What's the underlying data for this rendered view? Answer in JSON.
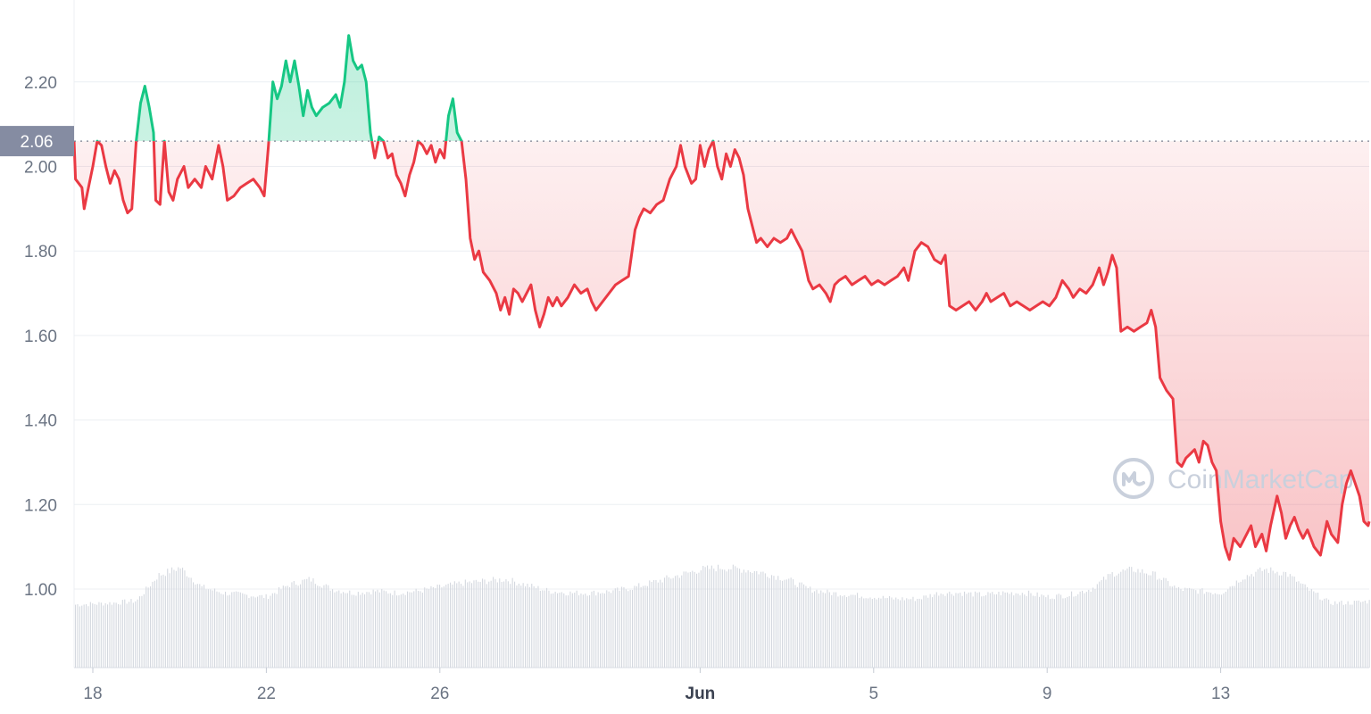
{
  "watermark": {
    "text": "CoinMarketCap",
    "icon": "coinmarketcap-logo-icon"
  },
  "colors": {
    "up": "#16c784",
    "down": "#ea3943",
    "grid": "#eceff3",
    "axis_text": "#6b7483",
    "volume": "#d4d8df",
    "ref_badge": "#858ca2"
  },
  "chart_data": {
    "type": "line",
    "title": "",
    "xlabel": "",
    "ylabel": "",
    "ylim": [
      0.82,
      2.35
    ],
    "y_ticks": [
      "1.00",
      "1.20",
      "1.40",
      "1.60",
      "1.80",
      "2.00",
      "2.20"
    ],
    "x_ticks": [
      {
        "label": "18",
        "day": 0,
        "bold": false
      },
      {
        "label": "22",
        "day": 4,
        "bold": false
      },
      {
        "label": "26",
        "day": 8,
        "bold": false
      },
      {
        "label": "Jun",
        "day": 14,
        "bold": true
      },
      {
        "label": "5",
        "day": 18,
        "bold": false
      },
      {
        "label": "9",
        "day": 22,
        "bold": false
      },
      {
        "label": "13",
        "day": 26,
        "bold": false
      }
    ],
    "reference": {
      "value": 2.06,
      "label": "2.06"
    },
    "x_domain": [
      -0.45,
      29.5
    ],
    "series": [
      {
        "points": [
          [
            -0.45,
            2.06
          ],
          [
            -0.4,
            1.97
          ],
          [
            -0.25,
            1.95
          ],
          [
            -0.2,
            1.9
          ],
          [
            -0.1,
            1.95
          ],
          [
            0,
            2.0
          ],
          [
            0.1,
            2.06
          ],
          [
            0.2,
            2.05
          ],
          [
            0.3,
            2.0
          ],
          [
            0.4,
            1.96
          ],
          [
            0.5,
            1.99
          ],
          [
            0.6,
            1.97
          ],
          [
            0.7,
            1.92
          ],
          [
            0.8,
            1.89
          ],
          [
            0.9,
            1.9
          ],
          [
            1.0,
            2.06
          ],
          [
            1.1,
            2.15
          ],
          [
            1.2,
            2.19
          ],
          [
            1.3,
            2.14
          ],
          [
            1.4,
            2.08
          ],
          [
            1.45,
            1.92
          ],
          [
            1.55,
            1.91
          ],
          [
            1.65,
            2.06
          ],
          [
            1.75,
            1.94
          ],
          [
            1.85,
            1.92
          ],
          [
            1.95,
            1.97
          ],
          [
            2.1,
            2.0
          ],
          [
            2.2,
            1.95
          ],
          [
            2.35,
            1.97
          ],
          [
            2.5,
            1.95
          ],
          [
            2.6,
            2.0
          ],
          [
            2.75,
            1.97
          ],
          [
            2.9,
            2.05
          ],
          [
            3.0,
            2.0
          ],
          [
            3.1,
            1.92
          ],
          [
            3.25,
            1.93
          ],
          [
            3.4,
            1.95
          ],
          [
            3.55,
            1.96
          ],
          [
            3.7,
            1.97
          ],
          [
            3.85,
            1.95
          ],
          [
            3.95,
            1.93
          ],
          [
            4.05,
            2.05
          ],
          [
            4.15,
            2.2
          ],
          [
            4.25,
            2.16
          ],
          [
            4.35,
            2.19
          ],
          [
            4.45,
            2.25
          ],
          [
            4.55,
            2.2
          ],
          [
            4.65,
            2.25
          ],
          [
            4.75,
            2.19
          ],
          [
            4.85,
            2.12
          ],
          [
            4.95,
            2.18
          ],
          [
            5.05,
            2.14
          ],
          [
            5.15,
            2.12
          ],
          [
            5.3,
            2.14
          ],
          [
            5.45,
            2.15
          ],
          [
            5.6,
            2.17
          ],
          [
            5.7,
            2.14
          ],
          [
            5.8,
            2.2
          ],
          [
            5.9,
            2.31
          ],
          [
            6.0,
            2.25
          ],
          [
            6.1,
            2.23
          ],
          [
            6.2,
            2.24
          ],
          [
            6.3,
            2.2
          ],
          [
            6.4,
            2.08
          ],
          [
            6.5,
            2.02
          ],
          [
            6.6,
            2.07
          ],
          [
            6.7,
            2.06
          ],
          [
            6.8,
            2.02
          ],
          [
            6.9,
            2.03
          ],
          [
            7.0,
            1.98
          ],
          [
            7.1,
            1.96
          ],
          [
            7.2,
            1.93
          ],
          [
            7.3,
            1.98
          ],
          [
            7.4,
            2.01
          ],
          [
            7.5,
            2.06
          ],
          [
            7.6,
            2.05
          ],
          [
            7.7,
            2.03
          ],
          [
            7.8,
            2.05
          ],
          [
            7.9,
            2.01
          ],
          [
            8.0,
            2.04
          ],
          [
            8.1,
            2.02
          ],
          [
            8.2,
            2.12
          ],
          [
            8.3,
            2.16
          ],
          [
            8.4,
            2.08
          ],
          [
            8.5,
            2.06
          ],
          [
            8.6,
            1.97
          ],
          [
            8.7,
            1.83
          ],
          [
            8.8,
            1.78
          ],
          [
            8.9,
            1.8
          ],
          [
            9.0,
            1.75
          ],
          [
            9.15,
            1.73
          ],
          [
            9.3,
            1.7
          ],
          [
            9.4,
            1.66
          ],
          [
            9.5,
            1.69
          ],
          [
            9.6,
            1.65
          ],
          [
            9.7,
            1.71
          ],
          [
            9.8,
            1.7
          ],
          [
            9.9,
            1.68
          ],
          [
            10.0,
            1.7
          ],
          [
            10.1,
            1.72
          ],
          [
            10.2,
            1.66
          ],
          [
            10.3,
            1.62
          ],
          [
            10.4,
            1.65
          ],
          [
            10.5,
            1.69
          ],
          [
            10.6,
            1.67
          ],
          [
            10.7,
            1.69
          ],
          [
            10.8,
            1.67
          ],
          [
            10.95,
            1.69
          ],
          [
            11.1,
            1.72
          ],
          [
            11.25,
            1.7
          ],
          [
            11.4,
            1.71
          ],
          [
            11.5,
            1.68
          ],
          [
            11.6,
            1.66
          ],
          [
            11.75,
            1.68
          ],
          [
            11.9,
            1.7
          ],
          [
            12.05,
            1.72
          ],
          [
            12.2,
            1.73
          ],
          [
            12.35,
            1.74
          ],
          [
            12.5,
            1.85
          ],
          [
            12.6,
            1.88
          ],
          [
            12.7,
            1.9
          ],
          [
            12.85,
            1.89
          ],
          [
            13.0,
            1.91
          ],
          [
            13.15,
            1.92
          ],
          [
            13.3,
            1.97
          ],
          [
            13.45,
            2.0
          ],
          [
            13.55,
            2.05
          ],
          [
            13.65,
            2.0
          ],
          [
            13.8,
            1.96
          ],
          [
            13.9,
            1.97
          ],
          [
            14.0,
            2.05
          ],
          [
            14.1,
            2.0
          ],
          [
            14.2,
            2.04
          ],
          [
            14.3,
            2.06
          ],
          [
            14.4,
            2.0
          ],
          [
            14.5,
            1.97
          ],
          [
            14.6,
            2.03
          ],
          [
            14.7,
            2.0
          ],
          [
            14.8,
            2.04
          ],
          [
            14.9,
            2.02
          ],
          [
            15.0,
            1.98
          ],
          [
            15.1,
            1.9
          ],
          [
            15.2,
            1.86
          ],
          [
            15.3,
            1.82
          ],
          [
            15.4,
            1.83
          ],
          [
            15.55,
            1.81
          ],
          [
            15.7,
            1.83
          ],
          [
            15.85,
            1.82
          ],
          [
            16.0,
            1.83
          ],
          [
            16.1,
            1.85
          ],
          [
            16.2,
            1.83
          ],
          [
            16.35,
            1.8
          ],
          [
            16.5,
            1.73
          ],
          [
            16.6,
            1.71
          ],
          [
            16.75,
            1.72
          ],
          [
            16.9,
            1.7
          ],
          [
            17.0,
            1.68
          ],
          [
            17.1,
            1.72
          ],
          [
            17.2,
            1.73
          ],
          [
            17.35,
            1.74
          ],
          [
            17.5,
            1.72
          ],
          [
            17.65,
            1.73
          ],
          [
            17.8,
            1.74
          ],
          [
            17.95,
            1.72
          ],
          [
            18.1,
            1.73
          ],
          [
            18.25,
            1.72
          ],
          [
            18.4,
            1.73
          ],
          [
            18.55,
            1.74
          ],
          [
            18.7,
            1.76
          ],
          [
            18.8,
            1.73
          ],
          [
            18.95,
            1.8
          ],
          [
            19.1,
            1.82
          ],
          [
            19.25,
            1.81
          ],
          [
            19.4,
            1.78
          ],
          [
            19.55,
            1.77
          ],
          [
            19.65,
            1.79
          ],
          [
            19.75,
            1.67
          ],
          [
            19.9,
            1.66
          ],
          [
            20.05,
            1.67
          ],
          [
            20.2,
            1.68
          ],
          [
            20.35,
            1.66
          ],
          [
            20.5,
            1.68
          ],
          [
            20.6,
            1.7
          ],
          [
            20.7,
            1.68
          ],
          [
            20.85,
            1.69
          ],
          [
            21.0,
            1.7
          ],
          [
            21.15,
            1.67
          ],
          [
            21.3,
            1.68
          ],
          [
            21.45,
            1.67
          ],
          [
            21.6,
            1.66
          ],
          [
            21.75,
            1.67
          ],
          [
            21.9,
            1.68
          ],
          [
            22.05,
            1.67
          ],
          [
            22.2,
            1.69
          ],
          [
            22.35,
            1.73
          ],
          [
            22.5,
            1.71
          ],
          [
            22.6,
            1.69
          ],
          [
            22.75,
            1.71
          ],
          [
            22.9,
            1.7
          ],
          [
            23.05,
            1.72
          ],
          [
            23.2,
            1.76
          ],
          [
            23.3,
            1.72
          ],
          [
            23.4,
            1.75
          ],
          [
            23.5,
            1.79
          ],
          [
            23.6,
            1.76
          ],
          [
            23.7,
            1.61
          ],
          [
            23.85,
            1.62
          ],
          [
            24.0,
            1.61
          ],
          [
            24.15,
            1.62
          ],
          [
            24.3,
            1.63
          ],
          [
            24.4,
            1.66
          ],
          [
            24.5,
            1.62
          ],
          [
            24.6,
            1.5
          ],
          [
            24.75,
            1.47
          ],
          [
            24.9,
            1.45
          ],
          [
            25.0,
            1.3
          ],
          [
            25.1,
            1.29
          ],
          [
            25.2,
            1.31
          ],
          [
            25.3,
            1.32
          ],
          [
            25.4,
            1.33
          ],
          [
            25.5,
            1.3
          ],
          [
            25.6,
            1.35
          ],
          [
            25.7,
            1.34
          ],
          [
            25.8,
            1.3
          ],
          [
            25.9,
            1.28
          ],
          [
            26.0,
            1.16
          ],
          [
            26.1,
            1.1
          ],
          [
            26.2,
            1.07
          ],
          [
            26.3,
            1.12
          ],
          [
            26.45,
            1.1
          ],
          [
            26.55,
            1.12
          ],
          [
            26.7,
            1.15
          ],
          [
            26.8,
            1.1
          ],
          [
            26.95,
            1.13
          ],
          [
            27.05,
            1.09
          ],
          [
            27.15,
            1.15
          ],
          [
            27.3,
            1.22
          ],
          [
            27.4,
            1.18
          ],
          [
            27.5,
            1.12
          ],
          [
            27.6,
            1.15
          ],
          [
            27.7,
            1.17
          ],
          [
            27.8,
            1.14
          ],
          [
            27.9,
            1.12
          ],
          [
            28.0,
            1.14
          ],
          [
            28.15,
            1.1
          ],
          [
            28.3,
            1.08
          ],
          [
            28.45,
            1.16
          ],
          [
            28.55,
            1.13
          ],
          [
            28.7,
            1.11
          ],
          [
            28.8,
            1.2
          ],
          [
            28.9,
            1.25
          ],
          [
            29.0,
            1.28
          ],
          [
            29.1,
            1.25
          ],
          [
            29.2,
            1.22
          ],
          [
            29.3,
            1.16
          ],
          [
            29.4,
            1.15
          ],
          [
            29.5,
            1.16
          ]
        ]
      }
    ],
    "volume": {
      "points": [
        [
          -0.45,
          0.32
        ],
        [
          0.5,
          0.33
        ],
        [
          1.0,
          0.34
        ],
        [
          1.5,
          0.47
        ],
        [
          2.0,
          0.51
        ],
        [
          2.5,
          0.41
        ],
        [
          3.0,
          0.38
        ],
        [
          3.5,
          0.37
        ],
        [
          4.0,
          0.36
        ],
        [
          4.5,
          0.42
        ],
        [
          5.0,
          0.45
        ],
        [
          5.5,
          0.4
        ],
        [
          6.0,
          0.38
        ],
        [
          6.5,
          0.39
        ],
        [
          7.0,
          0.38
        ],
        [
          7.5,
          0.39
        ],
        [
          8.0,
          0.41
        ],
        [
          8.5,
          0.43
        ],
        [
          9.0,
          0.44
        ],
        [
          9.5,
          0.45
        ],
        [
          10.0,
          0.42
        ],
        [
          10.5,
          0.39
        ],
        [
          11.0,
          0.38
        ],
        [
          11.5,
          0.38
        ],
        [
          12.0,
          0.39
        ],
        [
          12.5,
          0.41
        ],
        [
          13.0,
          0.44
        ],
        [
          13.5,
          0.47
        ],
        [
          14.0,
          0.5
        ],
        [
          14.5,
          0.51
        ],
        [
          15.0,
          0.5
        ],
        [
          15.5,
          0.48
        ],
        [
          16.0,
          0.45
        ],
        [
          16.5,
          0.4
        ],
        [
          17.0,
          0.38
        ],
        [
          17.5,
          0.37
        ],
        [
          18.0,
          0.36
        ],
        [
          18.5,
          0.35
        ],
        [
          19.0,
          0.35
        ],
        [
          19.5,
          0.38
        ],
        [
          20.0,
          0.38
        ],
        [
          20.5,
          0.37
        ],
        [
          21.0,
          0.38
        ],
        [
          21.5,
          0.38
        ],
        [
          22.0,
          0.36
        ],
        [
          22.5,
          0.37
        ],
        [
          23.0,
          0.4
        ],
        [
          23.5,
          0.48
        ],
        [
          24.0,
          0.5
        ],
        [
          24.5,
          0.47
        ],
        [
          25.0,
          0.4
        ],
        [
          25.5,
          0.39
        ],
        [
          26.0,
          0.38
        ],
        [
          26.5,
          0.46
        ],
        [
          27.0,
          0.5
        ],
        [
          27.5,
          0.48
        ],
        [
          28.0,
          0.4
        ],
        [
          28.5,
          0.33
        ],
        [
          29.0,
          0.33
        ],
        [
          29.5,
          0.34
        ]
      ]
    }
  }
}
